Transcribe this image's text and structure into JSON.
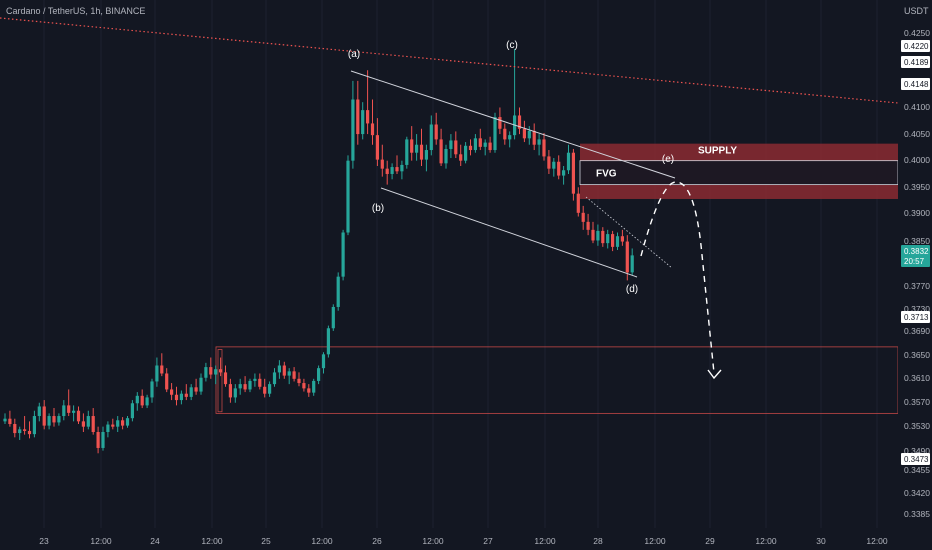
{
  "header": {
    "title": "Cardano / TetherUS, 1h, BINANCE",
    "currency": "USDT"
  },
  "colors": {
    "background": "#131722",
    "up": "#26a69a",
    "down": "#ef5350",
    "supply_zone": "#8b2a31",
    "trendline": "#ef5350",
    "channel": "#d1d4dc"
  },
  "chart_data": {
    "type": "candlestick",
    "symbol": "Cardano / TetherUS",
    "interval": "1h",
    "exchange": "BINANCE",
    "x_tick_labels": [
      "23",
      "12:00",
      "24",
      "12:00",
      "25",
      "12:00",
      "26",
      "12:00",
      "27",
      "12:00",
      "28",
      "12:00",
      "29",
      "12:00",
      "30",
      "12:00"
    ],
    "y_tick_labels": [
      "0.4250",
      "0.4100",
      "0.4050",
      "0.4000",
      "0.3950",
      "0.3900",
      "0.3850",
      "0.3770",
      "0.3730",
      "0.3690",
      "0.3650",
      "0.3610",
      "0.3570",
      "0.3530",
      "0.3490",
      "0.3455",
      "0.3420",
      "0.3385"
    ],
    "price_labels": [
      {
        "text": "0.4220",
        "value": 0.422,
        "style": "light"
      },
      {
        "text": "0.4189",
        "value": 0.4189,
        "style": "light"
      },
      {
        "text": "0.4148",
        "value": 0.4148,
        "style": "light"
      },
      {
        "text": "0.3713",
        "value": 0.3713,
        "style": "light"
      },
      {
        "text": "0.3473",
        "value": 0.3473,
        "style": "light"
      }
    ],
    "last_price": {
      "price": "0.3832",
      "countdown": "20:57"
    },
    "wave_labels": [
      "(a)",
      "(b)",
      "(c)",
      "(d)",
      "(e)"
    ],
    "zones": [
      {
        "label": "SUPPLY",
        "from": 0.3938,
        "to": 0.4042
      },
      {
        "label": "FVG",
        "from": 0.3965,
        "to": 0.401
      }
    ],
    "candles": [
      [
        0.352,
        0.3535,
        0.3515,
        0.3525
      ],
      [
        0.3525,
        0.354,
        0.351,
        0.3515
      ],
      [
        0.3515,
        0.3525,
        0.349,
        0.3498
      ],
      [
        0.3498,
        0.351,
        0.3485,
        0.3505
      ],
      [
        0.3505,
        0.353,
        0.3495,
        0.3502
      ],
      [
        0.3502,
        0.352,
        0.3488,
        0.3496
      ],
      [
        0.3496,
        0.354,
        0.349,
        0.353
      ],
      [
        0.353,
        0.3555,
        0.352,
        0.3548
      ],
      [
        0.3548,
        0.356,
        0.3505,
        0.3512
      ],
      [
        0.3512,
        0.3535,
        0.3505,
        0.353
      ],
      [
        0.353,
        0.3545,
        0.351,
        0.3518
      ],
      [
        0.3518,
        0.3535,
        0.3512,
        0.353
      ],
      [
        0.353,
        0.356,
        0.3522,
        0.355
      ],
      [
        0.355,
        0.358,
        0.353,
        0.3536
      ],
      [
        0.3536,
        0.355,
        0.352,
        0.354
      ],
      [
        0.354,
        0.3548,
        0.3515,
        0.352
      ],
      [
        0.352,
        0.3535,
        0.35,
        0.351
      ],
      [
        0.351,
        0.354,
        0.3505,
        0.353
      ],
      [
        0.353,
        0.3545,
        0.3495,
        0.35
      ],
      [
        0.35,
        0.351,
        0.346,
        0.347
      ],
      [
        0.347,
        0.351,
        0.3465,
        0.35
      ],
      [
        0.35,
        0.352,
        0.349,
        0.3514
      ],
      [
        0.3514,
        0.3525,
        0.3505,
        0.351
      ],
      [
        0.351,
        0.353,
        0.35,
        0.3522
      ],
      [
        0.3522,
        0.3528,
        0.3505,
        0.3512
      ],
      [
        0.3512,
        0.353,
        0.3508,
        0.3526
      ],
      [
        0.3526,
        0.356,
        0.352,
        0.3554
      ],
      [
        0.3554,
        0.3575,
        0.354,
        0.3568
      ],
      [
        0.3568,
        0.358,
        0.3545,
        0.355
      ],
      [
        0.355,
        0.357,
        0.3545,
        0.3565
      ],
      [
        0.3565,
        0.36,
        0.3555,
        0.3595
      ],
      [
        0.3595,
        0.364,
        0.3585,
        0.3625
      ],
      [
        0.3625,
        0.3648,
        0.3605,
        0.361
      ],
      [
        0.361,
        0.362,
        0.3575,
        0.358
      ],
      [
        0.358,
        0.3592,
        0.356,
        0.357
      ],
      [
        0.357,
        0.3585,
        0.355,
        0.356
      ],
      [
        0.356,
        0.3578,
        0.3552,
        0.3572
      ],
      [
        0.3572,
        0.359,
        0.356,
        0.3566
      ],
      [
        0.3566,
        0.359,
        0.356,
        0.3584
      ],
      [
        0.3584,
        0.36,
        0.357,
        0.3576
      ],
      [
        0.3576,
        0.361,
        0.357,
        0.3602
      ],
      [
        0.3602,
        0.363,
        0.3595,
        0.3622
      ],
      [
        0.3622,
        0.364,
        0.36,
        0.3608
      ],
      [
        0.3608,
        0.3625,
        0.359,
        0.3618
      ],
      [
        0.3618,
        0.364,
        0.3605,
        0.3612
      ],
      [
        0.3612,
        0.3625,
        0.3585,
        0.359
      ],
      [
        0.359,
        0.36,
        0.3555,
        0.3565
      ],
      [
        0.3565,
        0.359,
        0.3555,
        0.3582
      ],
      [
        0.3582,
        0.36,
        0.357,
        0.359
      ],
      [
        0.359,
        0.3605,
        0.3575,
        0.358
      ],
      [
        0.358,
        0.36,
        0.3575,
        0.3596
      ],
      [
        0.3596,
        0.361,
        0.3585,
        0.36
      ],
      [
        0.36,
        0.361,
        0.358,
        0.3585
      ],
      [
        0.3585,
        0.36,
        0.3565,
        0.3572
      ],
      [
        0.3572,
        0.3595,
        0.3566,
        0.359
      ],
      [
        0.359,
        0.362,
        0.3585,
        0.3612
      ],
      [
        0.3612,
        0.3635,
        0.36,
        0.3625
      ],
      [
        0.3625,
        0.3632,
        0.36,
        0.3606
      ],
      [
        0.3606,
        0.362,
        0.359,
        0.3614
      ],
      [
        0.3614,
        0.3622,
        0.3595,
        0.36
      ],
      [
        0.36,
        0.3612,
        0.3586,
        0.3592
      ],
      [
        0.3592,
        0.36,
        0.3576,
        0.3582
      ],
      [
        0.3582,
        0.359,
        0.3566,
        0.3574
      ],
      [
        0.3574,
        0.36,
        0.3568,
        0.3596
      ],
      [
        0.3596,
        0.3625,
        0.359,
        0.362
      ],
      [
        0.362,
        0.365,
        0.361,
        0.3646
      ],
      [
        0.3646,
        0.37,
        0.364,
        0.3695
      ],
      [
        0.3695,
        0.374,
        0.369,
        0.3735
      ],
      [
        0.3735,
        0.38,
        0.3728,
        0.3792
      ],
      [
        0.3792,
        0.388,
        0.3785,
        0.3875
      ],
      [
        0.3875,
        0.402,
        0.387,
        0.401
      ],
      [
        0.401,
        0.416,
        0.3995,
        0.4125
      ],
      [
        0.4125,
        0.416,
        0.404,
        0.406
      ],
      [
        0.406,
        0.412,
        0.405,
        0.4105
      ],
      [
        0.4105,
        0.418,
        0.406,
        0.408
      ],
      [
        0.408,
        0.4125,
        0.404,
        0.4058
      ],
      [
        0.4058,
        0.409,
        0.4,
        0.4012
      ],
      [
        0.4012,
        0.404,
        0.398,
        0.3995
      ],
      [
        0.3995,
        0.401,
        0.3965,
        0.3985
      ],
      [
        0.3985,
        0.4005,
        0.3975,
        0.3998
      ],
      [
        0.3998,
        0.402,
        0.3985,
        0.399
      ],
      [
        0.399,
        0.401,
        0.3975,
        0.4002
      ],
      [
        0.4002,
        0.4055,
        0.3995,
        0.405
      ],
      [
        0.405,
        0.4075,
        0.401,
        0.4025
      ],
      [
        0.4025,
        0.406,
        0.401,
        0.404
      ],
      [
        0.404,
        0.407,
        0.4,
        0.4012
      ],
      [
        0.4012,
        0.404,
        0.399,
        0.403
      ],
      [
        0.403,
        0.4095,
        0.402,
        0.4078
      ],
      [
        0.4078,
        0.41,
        0.404,
        0.405
      ],
      [
        0.405,
        0.407,
        0.4,
        0.4005
      ],
      [
        0.4005,
        0.404,
        0.3995,
        0.4032
      ],
      [
        0.4032,
        0.406,
        0.4015,
        0.4048
      ],
      [
        0.4048,
        0.4065,
        0.4015,
        0.4022
      ],
      [
        0.4022,
        0.404,
        0.4,
        0.401
      ],
      [
        0.401,
        0.4045,
        0.4005,
        0.4038
      ],
      [
        0.4038,
        0.405,
        0.402,
        0.403
      ],
      [
        0.403,
        0.406,
        0.4025,
        0.4052
      ],
      [
        0.4052,
        0.407,
        0.403,
        0.4036
      ],
      [
        0.4036,
        0.405,
        0.402,
        0.4044
      ],
      [
        0.4044,
        0.4055,
        0.4025,
        0.403
      ],
      [
        0.403,
        0.41,
        0.4025,
        0.4092
      ],
      [
        0.4092,
        0.411,
        0.406,
        0.407
      ],
      [
        0.407,
        0.408,
        0.404,
        0.405
      ],
      [
        0.405,
        0.4065,
        0.4035,
        0.4058
      ],
      [
        0.4058,
        0.422,
        0.405,
        0.4095
      ],
      [
        0.4095,
        0.411,
        0.406,
        0.407
      ],
      [
        0.407,
        0.4085,
        0.4045,
        0.4052
      ],
      [
        0.4052,
        0.4075,
        0.404,
        0.4066
      ],
      [
        0.4066,
        0.408,
        0.403,
        0.404
      ],
      [
        0.404,
        0.406,
        0.402,
        0.405
      ],
      [
        0.405,
        0.4062,
        0.401,
        0.4018
      ],
      [
        0.4018,
        0.403,
        0.3985,
        0.3995
      ],
      [
        0.3995,
        0.4015,
        0.398,
        0.4008
      ],
      [
        0.4008,
        0.402,
        0.3975,
        0.3982
      ],
      [
        0.3982,
        0.4,
        0.3965,
        0.3992
      ],
      [
        0.3992,
        0.404,
        0.3985,
        0.4025
      ],
      [
        0.4025,
        0.4032,
        0.3935,
        0.3948
      ],
      [
        0.3948,
        0.396,
        0.3905,
        0.3912
      ],
      [
        0.3912,
        0.3925,
        0.388,
        0.3895
      ],
      [
        0.3895,
        0.391,
        0.387,
        0.388
      ],
      [
        0.388,
        0.3895,
        0.3855,
        0.386
      ],
      [
        0.386,
        0.389,
        0.385,
        0.3878
      ],
      [
        0.3878,
        0.3885,
        0.3848,
        0.3855
      ],
      [
        0.3855,
        0.388,
        0.3845,
        0.3872
      ],
      [
        0.3872,
        0.3878,
        0.384,
        0.3848
      ],
      [
        0.3848,
        0.3875,
        0.3842,
        0.3868
      ],
      [
        0.3868,
        0.388,
        0.385,
        0.3858
      ],
      [
        0.3858,
        0.387,
        0.3785,
        0.38
      ],
      [
        0.38,
        0.3845,
        0.3795,
        0.3832
      ]
    ]
  }
}
